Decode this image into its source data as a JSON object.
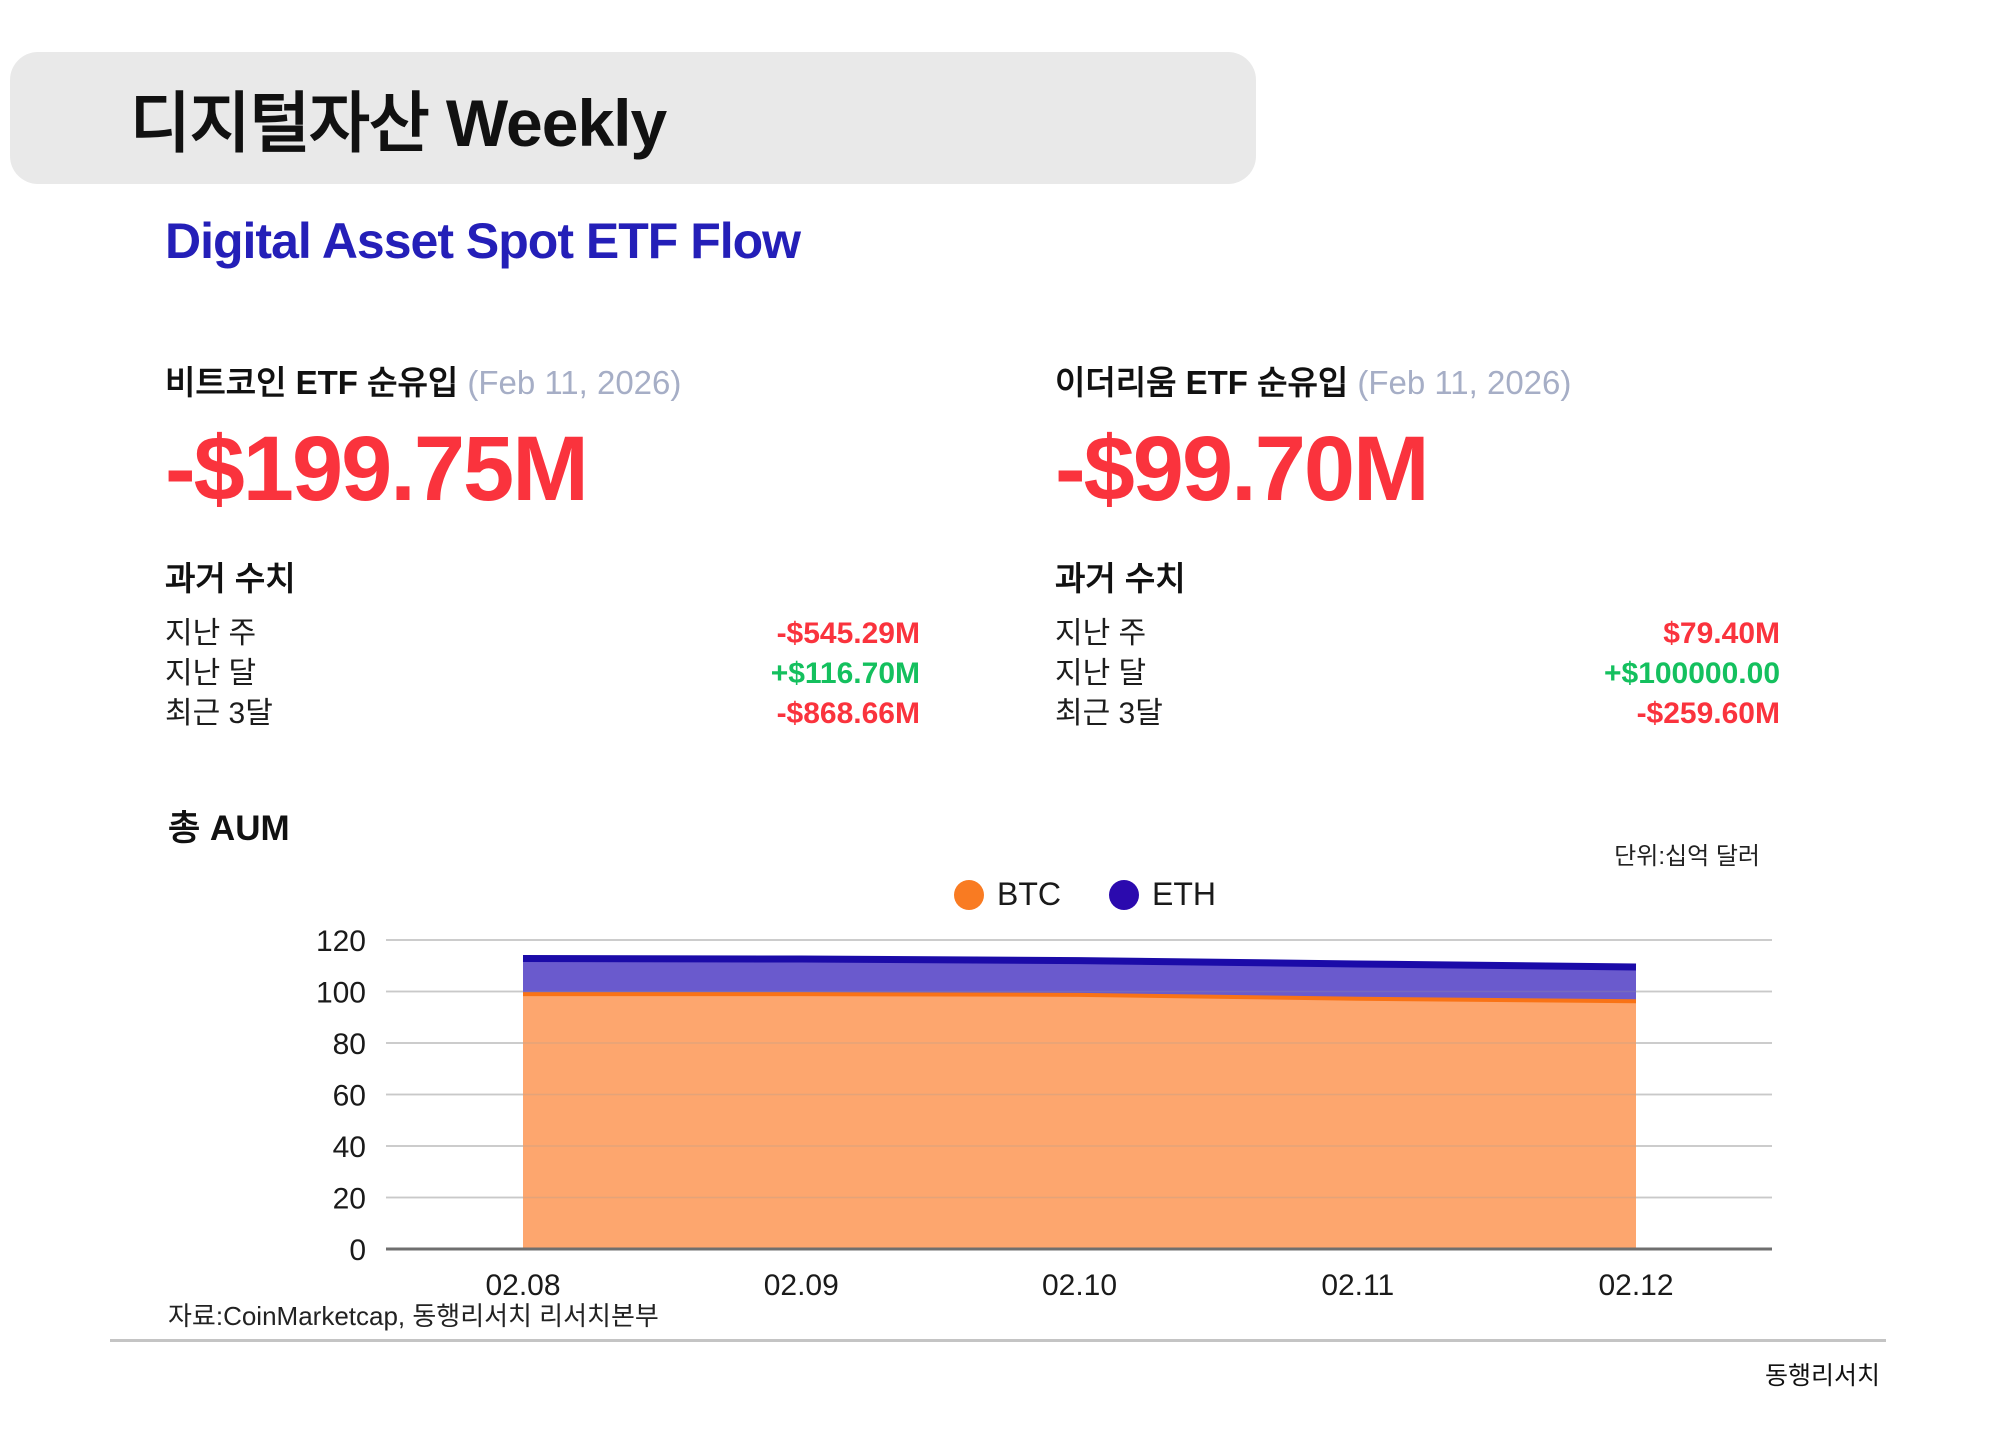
{
  "header": {
    "title": "디지털자산 Weekly",
    "subtitle": "Digital Asset Spot ETF Flow"
  },
  "cards": [
    {
      "title": "비트코인 ETF 순유입",
      "date": "(Feb 11, 2026)",
      "value": "-$199.75M",
      "history_title": "과거 수치",
      "rows": [
        {
          "label": "지난 주",
          "value": "-$545.29M",
          "direction": "negative"
        },
        {
          "label": "지난 달",
          "value": "+$116.70M",
          "direction": "positive"
        },
        {
          "label": "최근 3달",
          "value": "-$868.66M",
          "direction": "negative"
        }
      ]
    },
    {
      "title": "이더리움 ETF 순유입",
      "date": "(Feb 11, 2026)",
      "value": "-$99.70M",
      "history_title": "과거 수치",
      "rows": [
        {
          "label": "지난 주",
          "value": "$79.40M",
          "direction": "negative"
        },
        {
          "label": "지난 달",
          "value": "+$100000.00",
          "direction": "positive"
        },
        {
          "label": "최근 3달",
          "value": "-$259.60M",
          "direction": "negative"
        }
      ]
    }
  ],
  "chart_section": {
    "title": "총 AUM",
    "unit_label": "단위:십억 달러",
    "legend": [
      {
        "label": "BTC",
        "color": "#F97B22"
      },
      {
        "label": "ETH",
        "color": "#2B0AAE"
      }
    ]
  },
  "chart_data": {
    "type": "area",
    "stacked": true,
    "title": "총 AUM",
    "unit": "십억 달러",
    "x": [
      "02.08",
      "02.09",
      "02.10",
      "02.11",
      "02.12"
    ],
    "series": [
      {
        "name": "BTC",
        "values": [
          99,
          99,
          98.7,
          97.2,
          96.2
        ],
        "fill": "#FDA66E",
        "line": "#F97316"
      },
      {
        "name": "ETH",
        "values": [
          13.8,
          13.6,
          13.3,
          13.5,
          13.3
        ],
        "fill": "#6A5ACD",
        "line": "#1B0BA8"
      }
    ],
    "ylim": [
      0,
      120
    ],
    "yticks": [
      0,
      20,
      40,
      60,
      80,
      100,
      120
    ],
    "grid": "horizontal",
    "legend_position": "top-center"
  },
  "footer": {
    "source": "자료:CoinMarketcap, 동행리서치 리서치본부",
    "brand": "동행리서치"
  },
  "colors": {
    "negative": "#FA333D",
    "positive": "#14C05E",
    "subtitle": "#241FB8",
    "date": "#A6AEC6",
    "title_pill_bg": "#E9E9E9"
  }
}
